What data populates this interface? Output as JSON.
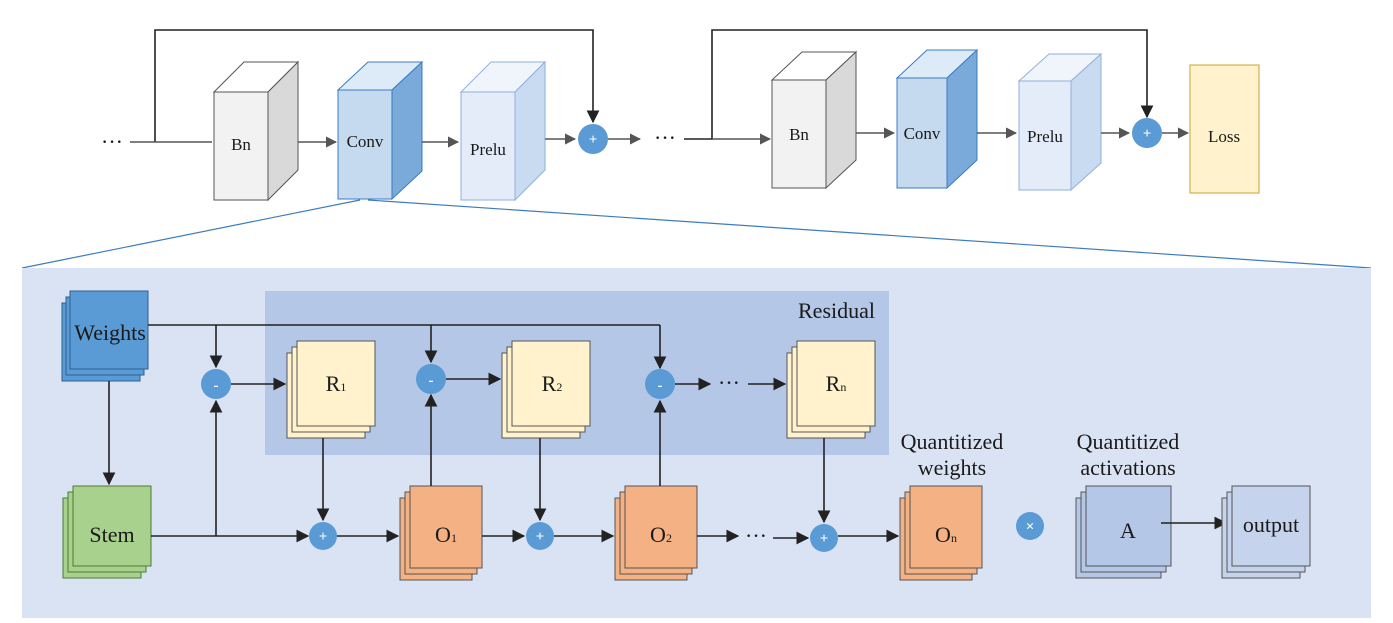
{
  "top_row": {
    "ellipsis": "···",
    "block1": {
      "bn": "Bn",
      "conv": "Conv",
      "prelu": "Prelu"
    },
    "block2": {
      "bn": "Bn",
      "conv": "Conv",
      "prelu": "Prelu"
    },
    "add_sign": "+",
    "loss": "Loss"
  },
  "detail": {
    "weights": "Weights",
    "stem": "Stem",
    "residual_title": "Residual",
    "r1": {
      "base": "R",
      "sub": "1"
    },
    "r2": {
      "base": "R",
      "sub": "2"
    },
    "rn": {
      "base": "R",
      "sub": "n"
    },
    "o1": {
      "base": "O",
      "sub": "1"
    },
    "o2": {
      "base": "O",
      "sub": "2"
    },
    "on": {
      "base": "O",
      "sub": "n"
    },
    "minus_sign": "-",
    "plus_sign": "+",
    "times_sign": "×",
    "ellipsis": "···",
    "quantized_weights": [
      "Quantitized",
      "weights"
    ],
    "quantized_activations": [
      "Quantitized",
      "activations"
    ],
    "activation": "A",
    "output": "output"
  },
  "colors": {
    "bn_front": "#f2f2f2",
    "conv_front": "#c5daef",
    "prelu_front": "#e3ecf8",
    "loss_fill": "#fff2cc",
    "loss_border": "#d6b656",
    "circle": "#5b9bd5",
    "panel_bg": "#dae3f3",
    "residual_bg": "#b4c7e7",
    "weights_fill": "#5b9bd5",
    "stem_fill": "#a9d18e",
    "r_fill": "#fff2cc",
    "o_fill": "#f4b183",
    "a_fill": "#b4c7e7"
  }
}
